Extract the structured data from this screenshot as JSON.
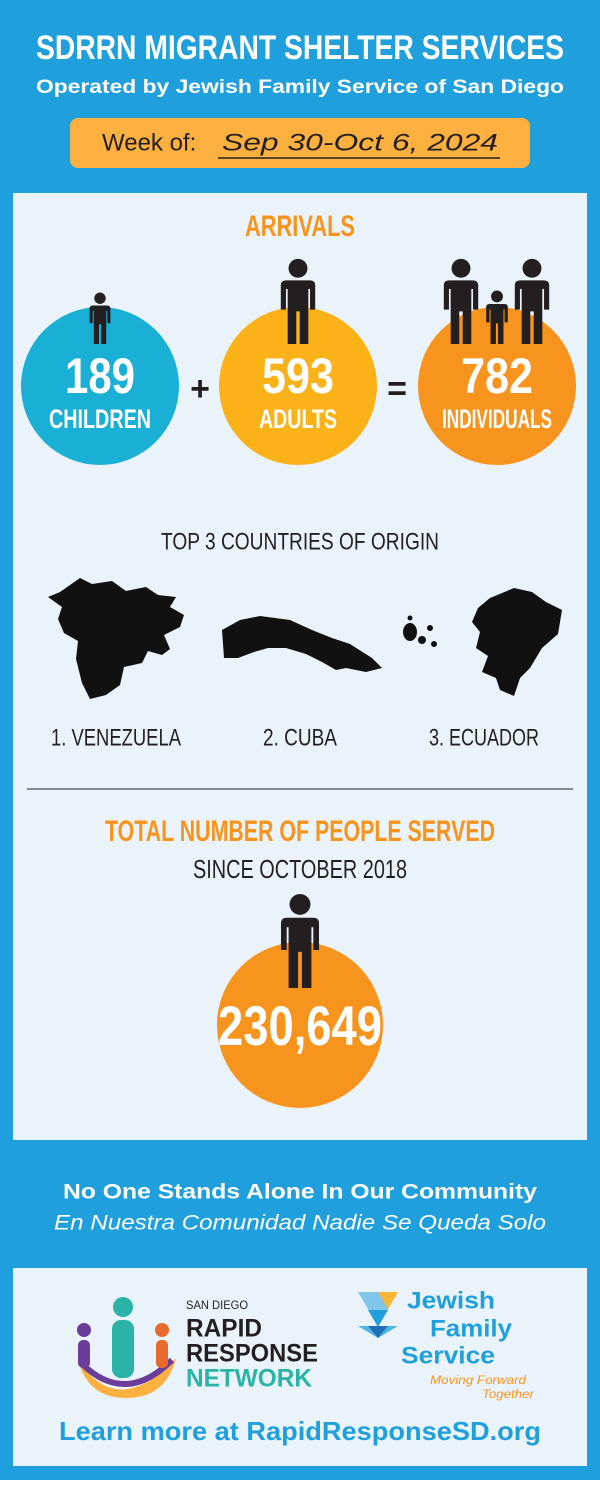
{
  "header": {
    "title": "SDRRN MIGRANT SHELTER SERVICES",
    "subtitle": "Operated by Jewish Family Service of San Diego",
    "week_label": "Week of:",
    "week": "Sep 30-Oct 6, 2024"
  },
  "arrivals": {
    "heading": "ARRIVALS",
    "groups": [
      {
        "value": "189",
        "label": "CHILDREN"
      },
      {
        "value": "593",
        "label": "ADULTS"
      },
      {
        "value": "782",
        "label": "INDIVIDUALS"
      }
    ],
    "plus": "+",
    "equals": "="
  },
  "origin": {
    "heading": "TOP 3 COUNTRIES OF ORIGIN",
    "countries": [
      "1. VENEZUELA",
      "2. CUBA",
      "3. ECUADOR"
    ]
  },
  "total": {
    "heading": "TOTAL NUMBER OF PEOPLE SERVED",
    "subheading": "SINCE OCTOBER 2018",
    "value": "230,649"
  },
  "footer": {
    "slogan": "No One Stands Alone In Our Community",
    "slogan_es": "En Nuestra Comunidad Nadie Se Queda Solo",
    "sdrrn_logo": [
      "SAN DIEGO",
      "RAPID",
      "RESPONSE",
      "NETWORK"
    ],
    "jfs_logo": [
      "Jewish",
      "Family",
      "Service",
      "Moving Forward",
      "Together"
    ],
    "link": "Learn more at RapidResponseSD.org"
  }
}
